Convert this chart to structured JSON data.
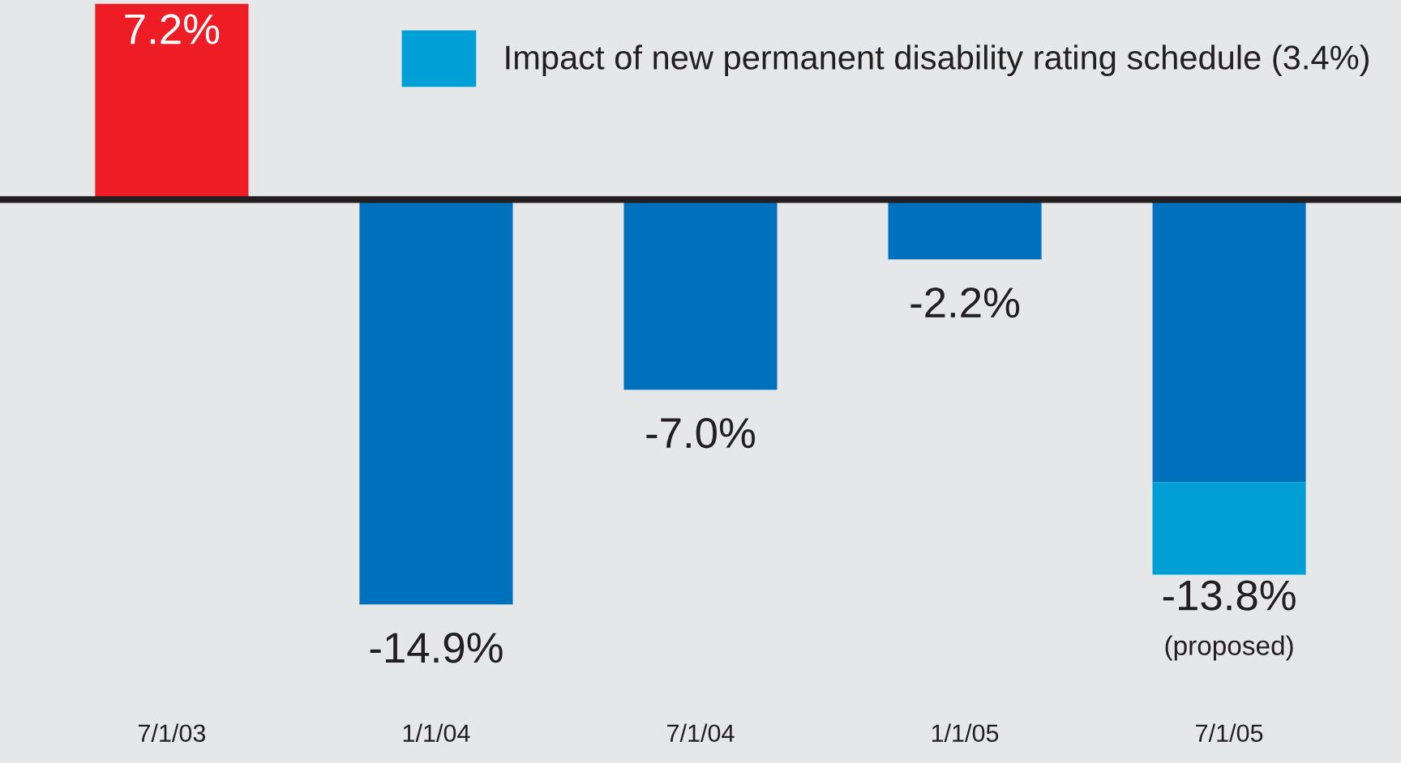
{
  "chart_data": {
    "type": "bar",
    "stacked": true,
    "categories": [
      "7/1/03",
      "1/1/04",
      "7/1/04",
      "1/1/05",
      "7/1/05"
    ],
    "series": [
      {
        "colors": [
          "#ee1c25",
          "#0071bc",
          "#0071bc",
          "#0071bc",
          "#0071bc"
        ],
        "values": [
          7.2,
          -14.9,
          -7.0,
          -2.2,
          -10.4
        ],
        "value_labels": [
          "7.2%",
          "-14.9%",
          "-7.0%",
          "-2.2%",
          null
        ]
      },
      {
        "name": "Impact of new permanent disability rating schedule (3.4%)",
        "color": "#009fd6",
        "values": [
          null,
          null,
          null,
          null,
          -3.4
        ]
      }
    ],
    "totals": [
      null,
      null,
      null,
      null,
      "-13.8%"
    ],
    "annotations": [
      {
        "text": "(proposed)",
        "x": "7/1/05",
        "y": -13.8
      }
    ],
    "legend": "top right",
    "grid": false
  }
}
